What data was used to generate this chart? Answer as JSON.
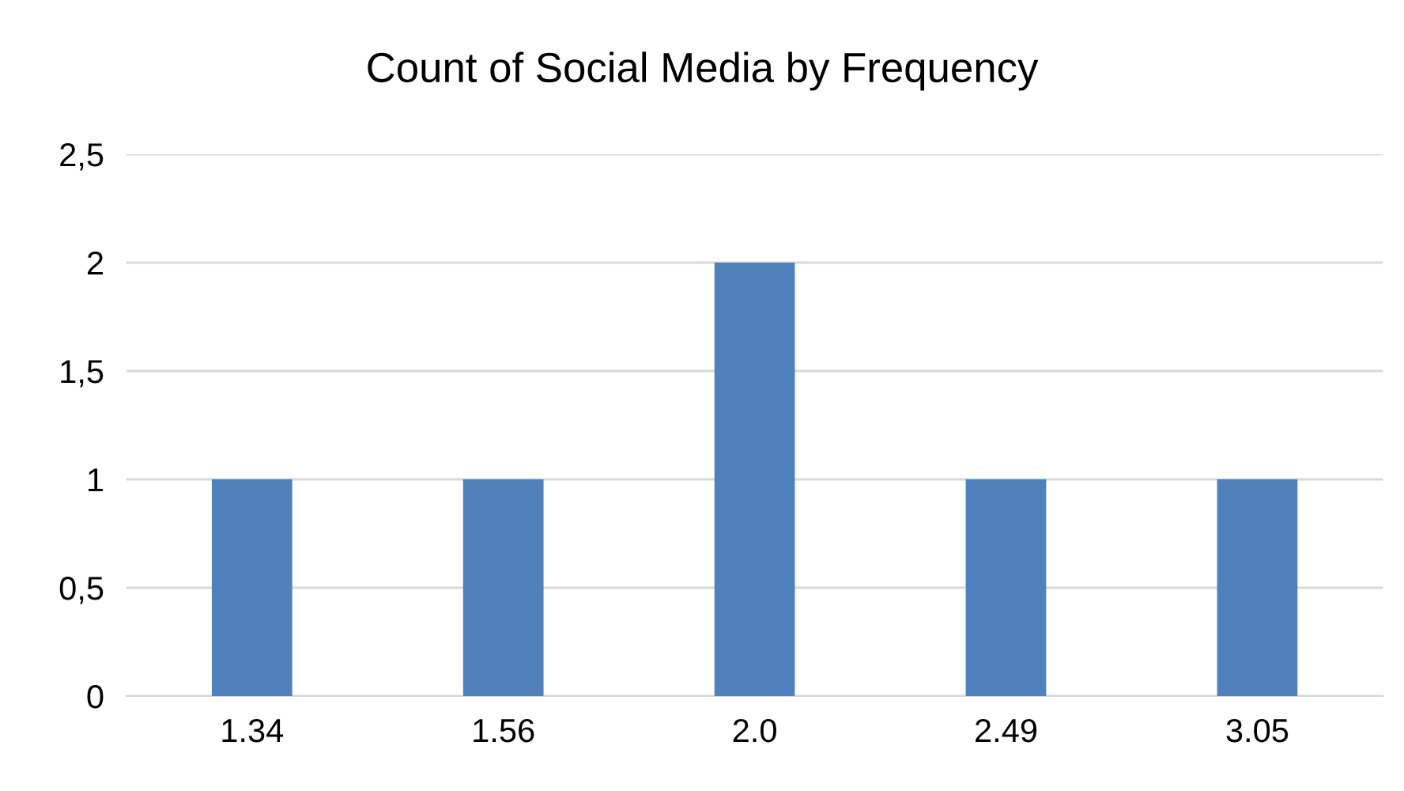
{
  "chart_data": {
    "type": "bar",
    "title": "Count of Social Media by Frequency",
    "categories": [
      "1.34",
      "1.56",
      "2.0",
      "2.49",
      "3.05"
    ],
    "values": [
      1,
      1,
      2,
      1,
      1
    ],
    "color": "#4f81bd",
    "ylim": [
      0,
      2.5
    ],
    "yticks": [
      0,
      {
        "value": 0.5,
        "label": "0,5"
      },
      1,
      {
        "value": 1.5,
        "label": "1,5"
      },
      2,
      {
        "value": 2.5,
        "label": "2,5"
      }
    ],
    "grid": "y"
  }
}
